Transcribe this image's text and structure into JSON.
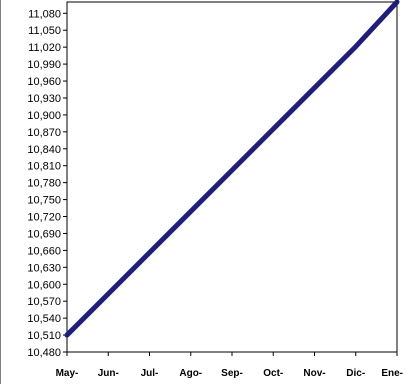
{
  "chart_data": {
    "type": "line",
    "title": "",
    "xlabel": "",
    "ylabel": "",
    "categories": [
      "May-",
      "Jun-",
      "Jul-",
      "Ago-",
      "Sep-",
      "Oct-",
      "Nov-",
      "Dic-",
      "Ene-"
    ],
    "y_ticks": [
      "10,480",
      "10,510",
      "10,540",
      "10,570",
      "10,600",
      "10,630",
      "10,660",
      "10,690",
      "10,720",
      "10,750",
      "10,780",
      "10,810",
      "10,840",
      "10,870",
      "10,900",
      "10,930",
      "10,960",
      "10,990",
      "11,020",
      "11,050",
      "11,080"
    ],
    "ylim": [
      10480,
      11100
    ],
    "grid": false,
    "legend": "none",
    "series": [
      {
        "values": [
          10510,
          10583,
          10656,
          10729,
          10802,
          10875,
          10948,
          11021,
          11100
        ],
        "color": "#1f1f7a"
      }
    ]
  }
}
